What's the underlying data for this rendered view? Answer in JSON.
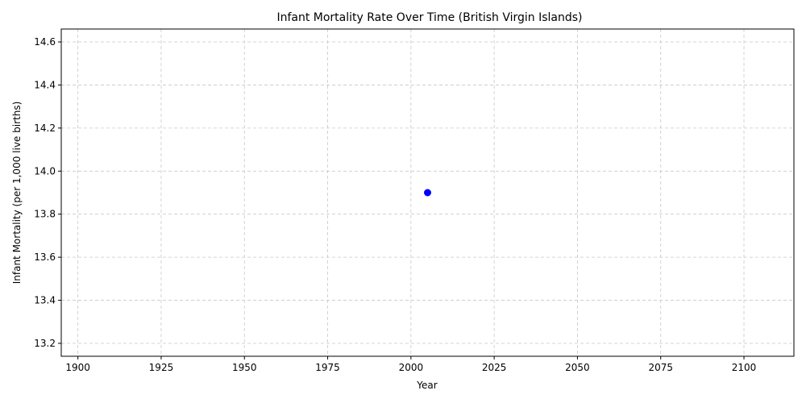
{
  "chart_data": {
    "type": "scatter",
    "title": "Infant Mortality Rate Over Time (British Virgin Islands)",
    "xlabel": "Year",
    "ylabel": "Infant Mortality (per 1,000 live births)",
    "xlim": [
      1895,
      2115
    ],
    "ylim": [
      13.14,
      14.66
    ],
    "x_ticks": [
      1900,
      1925,
      1950,
      1975,
      2000,
      2025,
      2050,
      2075,
      2100
    ],
    "y_ticks": [
      13.2,
      13.4,
      13.6,
      13.8,
      14.0,
      14.2,
      14.4,
      14.6
    ],
    "y_tick_labels": [
      "13.2",
      "13.4",
      "13.6",
      "13.8",
      "14.0",
      "14.2",
      "14.4",
      "14.6"
    ],
    "grid": true,
    "grid_style": "dashed",
    "series": [
      {
        "x": [
          2005
        ],
        "y": [
          13.9
        ],
        "color": "#0000ff"
      }
    ]
  }
}
